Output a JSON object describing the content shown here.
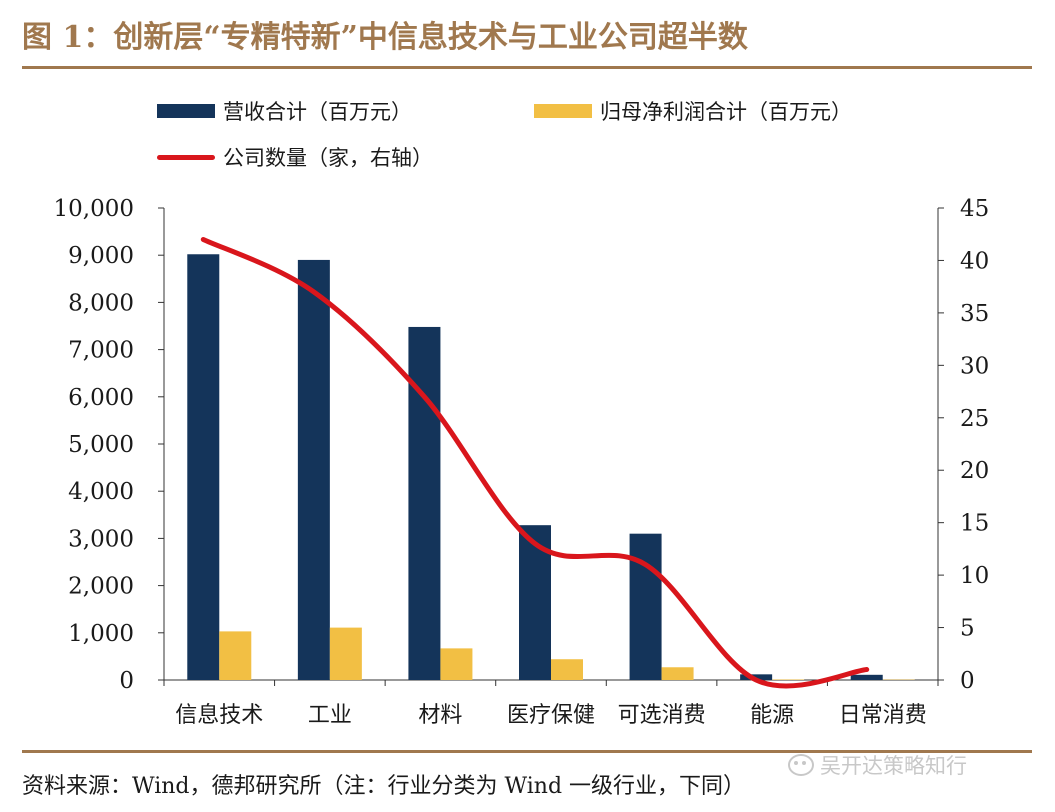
{
  "figure": {
    "title": "图 1：创新层“专精特新”中信息技术与工业公司超半数",
    "source": "资料来源：Wind，德邦研究所（注：行业分类为 Wind 一级行业，下同）",
    "watermark": "吴开达策略知行",
    "watermark_icon": "wechat-icon"
  },
  "colors": {
    "revenue": "#14345a",
    "profit": "#f2bf44",
    "count": "#d9161c",
    "accent": "#a0784e"
  },
  "chart_data": {
    "type": "bar",
    "categories": [
      "信息技术",
      "工业",
      "材料",
      "医疗保健",
      "可选消费",
      "能源",
      "日常消费"
    ],
    "series": [
      {
        "name": "营收合计（百万元）",
        "type": "bar",
        "axis": "left",
        "values": [
          9020,
          8900,
          7480,
          3280,
          3100,
          120,
          110
        ]
      },
      {
        "name": "归母净利润合计（百万元）",
        "type": "bar",
        "axis": "left",
        "values": [
          1030,
          1110,
          670,
          440,
          270,
          10,
          8
        ]
      },
      {
        "name": "公司数量（家，右轴）",
        "type": "line",
        "axis": "right",
        "values": [
          42,
          37,
          27,
          13,
          11,
          0,
          1
        ]
      }
    ],
    "y_left": {
      "ylim": [
        0,
        10000
      ],
      "ticks": [
        "0",
        "1,000",
        "2,000",
        "3,000",
        "4,000",
        "5,000",
        "6,000",
        "7,000",
        "8,000",
        "9,000",
        "10,000"
      ]
    },
    "y_right": {
      "ylim": [
        0,
        45
      ],
      "ticks": [
        "0",
        "5",
        "10",
        "15",
        "20",
        "25",
        "30",
        "35",
        "40",
        "45"
      ]
    },
    "grid": false,
    "legend": "top-left"
  }
}
